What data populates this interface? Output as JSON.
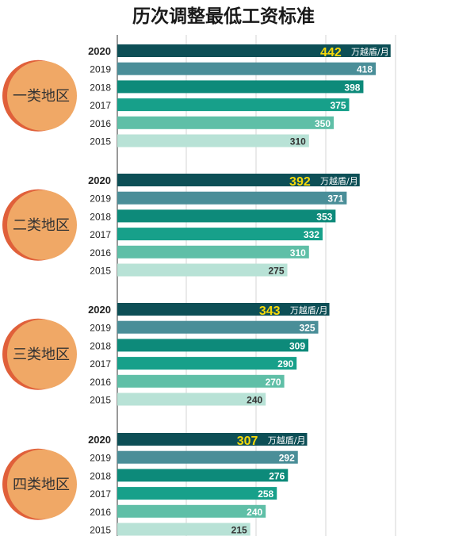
{
  "chart_data": {
    "type": "bar",
    "orientation": "horizontal",
    "title": "历次调整最低工资标准",
    "unit": "万越盾/月",
    "years": [
      "2020",
      "2019",
      "2018",
      "2017",
      "2016",
      "2015"
    ],
    "groups": [
      {
        "name": "一类地区",
        "values": [
          442,
          418,
          398,
          375,
          350,
          310
        ]
      },
      {
        "name": "二类地区",
        "values": [
          392,
          371,
          353,
          332,
          310,
          275
        ]
      },
      {
        "name": "三类地区",
        "values": [
          343,
          325,
          309,
          290,
          270,
          240
        ]
      },
      {
        "name": "四类地区",
        "values": [
          307,
          292,
          276,
          258,
          240,
          215
        ]
      }
    ],
    "colors": [
      "#0d4f56",
      "#4a8e98",
      "#0d8a7a",
      "#17a08a",
      "#5fbfa7",
      "#b8e2d6"
    ],
    "circle_color": "#f0a866",
    "circle_edge_color": "#e0603a",
    "grid": true
  }
}
